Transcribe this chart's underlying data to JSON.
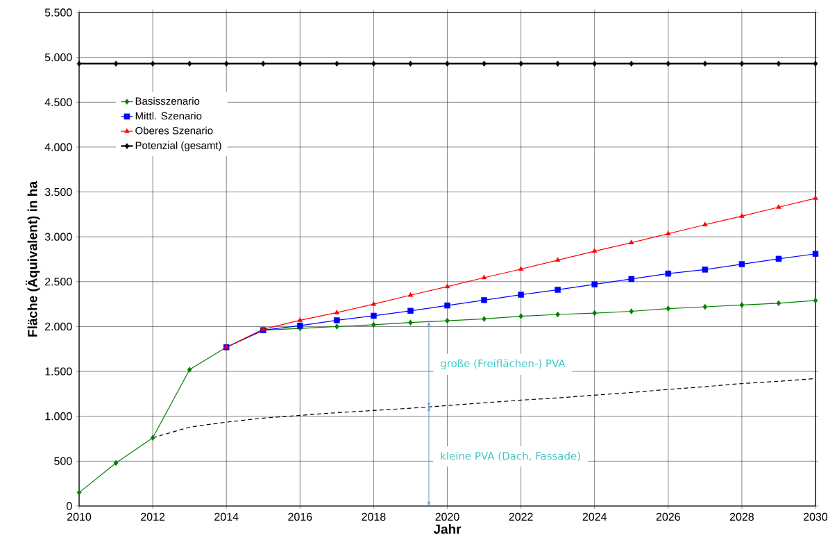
{
  "chart_data": {
    "type": "line",
    "xlabel": "Jahr",
    "ylabel": "Fläche (Äquivalent) in ha",
    "x": [
      2010,
      2011,
      2012,
      2013,
      2014,
      2015,
      2016,
      2017,
      2018,
      2019,
      2020,
      2021,
      2022,
      2023,
      2024,
      2025,
      2026,
      2027,
      2028,
      2029,
      2030
    ],
    "xlim": [
      2010,
      2030
    ],
    "xticks": [
      2010,
      2012,
      2014,
      2016,
      2018,
      2020,
      2022,
      2024,
      2026,
      2028,
      2030
    ],
    "ylim": [
      0,
      5500
    ],
    "yticks": [
      0,
      500,
      {
        "value": 1000,
        "label": "1.000"
      },
      {
        "value": 1500,
        "label": "1.500"
      },
      {
        "value": 2000,
        "label": "2.000"
      },
      {
        "value": 2500,
        "label": "2.500"
      },
      {
        "value": 3000,
        "label": "3.000"
      },
      {
        "value": 3500,
        "label": "3.500"
      },
      {
        "value": 4000,
        "label": "4.000"
      },
      {
        "value": 4500,
        "label": "4.500"
      },
      {
        "value": 5000,
        "label": "5.000"
      },
      {
        "value": 5500,
        "label": "5.500"
      }
    ],
    "grid": true,
    "legend": "top left",
    "series": [
      {
        "name": "Basisszenario",
        "color": "#008000",
        "marker": "diamond",
        "values": [
          150,
          480,
          760,
          1520,
          1770,
          1960,
          1980,
          2000,
          2020,
          2045,
          2065,
          2085,
          2115,
          2135,
          2150,
          2170,
          2200,
          2220,
          2240,
          2260,
          2290
        ]
      },
      {
        "name": "Mittl. Szenario",
        "color": "#0000ff",
        "marker": "square",
        "values": [
          null,
          null,
          null,
          null,
          1770,
          1960,
          2010,
          2070,
          2120,
          2175,
          2235,
          2295,
          2355,
          2410,
          2470,
          2530,
          2590,
          2635,
          2695,
          2755,
          2810
        ]
      },
      {
        "name": "Oberes Szenario",
        "color": "#ff0000",
        "marker": "triangle",
        "values": [
          null,
          null,
          null,
          null,
          1770,
          1970,
          2070,
          2155,
          2250,
          2350,
          2445,
          2545,
          2640,
          2740,
          2840,
          2935,
          3035,
          3135,
          3230,
          3330,
          3430
        ]
      },
      {
        "name": "Potenzial (gesamt)",
        "color": "#000000",
        "marker": "diamond",
        "values": [
          4930,
          4930,
          4930,
          4930,
          4930,
          4930,
          4930,
          4930,
          4930,
          4930,
          4930,
          4930,
          4930,
          4930,
          4930,
          4930,
          4930,
          4930,
          4930,
          4930,
          4930
        ]
      },
      {
        "color": "#000000",
        "marker": "none",
        "line_style": "dashed",
        "values": [
          null,
          null,
          760,
          880,
          935,
          980,
          1010,
          1040,
          1065,
          1090,
          1120,
          1150,
          1180,
          1205,
          1235,
          1265,
          1300,
          1330,
          1365,
          1390,
          1420
        ]
      }
    ],
    "annotations": [
      "große (Freiflächen-) PVA",
      "kleine PVA (Dach, Fassade)"
    ]
  }
}
